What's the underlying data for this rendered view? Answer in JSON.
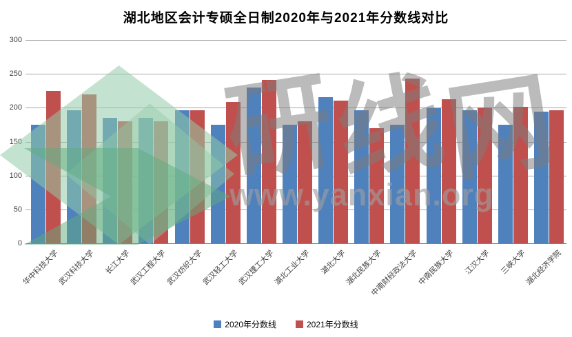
{
  "chart_data": {
    "type": "bar",
    "title": "湖北地区会计专硕全日制2020年与2021年分数线对比",
    "categories": [
      "华中科技大学",
      "武汉科技大学",
      "长江大学",
      "武汉工程大学",
      "武汉纺织大学",
      "武汉轻工大学",
      "武汉理工大学",
      "湖北工业大学",
      "湖北大学",
      "湖北民族大学",
      "中南财经政法大学",
      "中南民族大学",
      "江汉大学",
      "三峡大学",
      "湖北经济学院"
    ],
    "series": [
      {
        "name": "2020年分数线",
        "color_key": "series2020",
        "values": [
          175,
          196,
          185,
          185,
          196,
          175,
          230,
          175,
          216,
          196,
          175,
          199,
          196,
          175,
          194
        ]
      },
      {
        "name": "2021年分数线",
        "color_key": "series2021",
        "values": [
          225,
          220,
          180,
          180,
          196,
          208,
          241,
          180,
          211,
          170,
          243,
          213,
          200,
          201,
          196
        ]
      }
    ],
    "ylim": [
      0,
      300
    ],
    "yticks": [
      0,
      50,
      100,
      150,
      200,
      250,
      300
    ],
    "grid": true,
    "legend_position": "bottom",
    "xlabel": "",
    "ylabel": ""
  },
  "colors": {
    "series2020": "#4F81BD",
    "series2021": "#C0504D",
    "gridline": "#A6A6A6",
    "axis": "#7F7F7F",
    "tick_text": "#404040",
    "title_text": "#000000",
    "watermark_green": "#92CBA7",
    "watermark_gray": "#9E9E9E"
  },
  "watermark": {
    "brand": "研线网",
    "url": "www.yanxian.org"
  }
}
